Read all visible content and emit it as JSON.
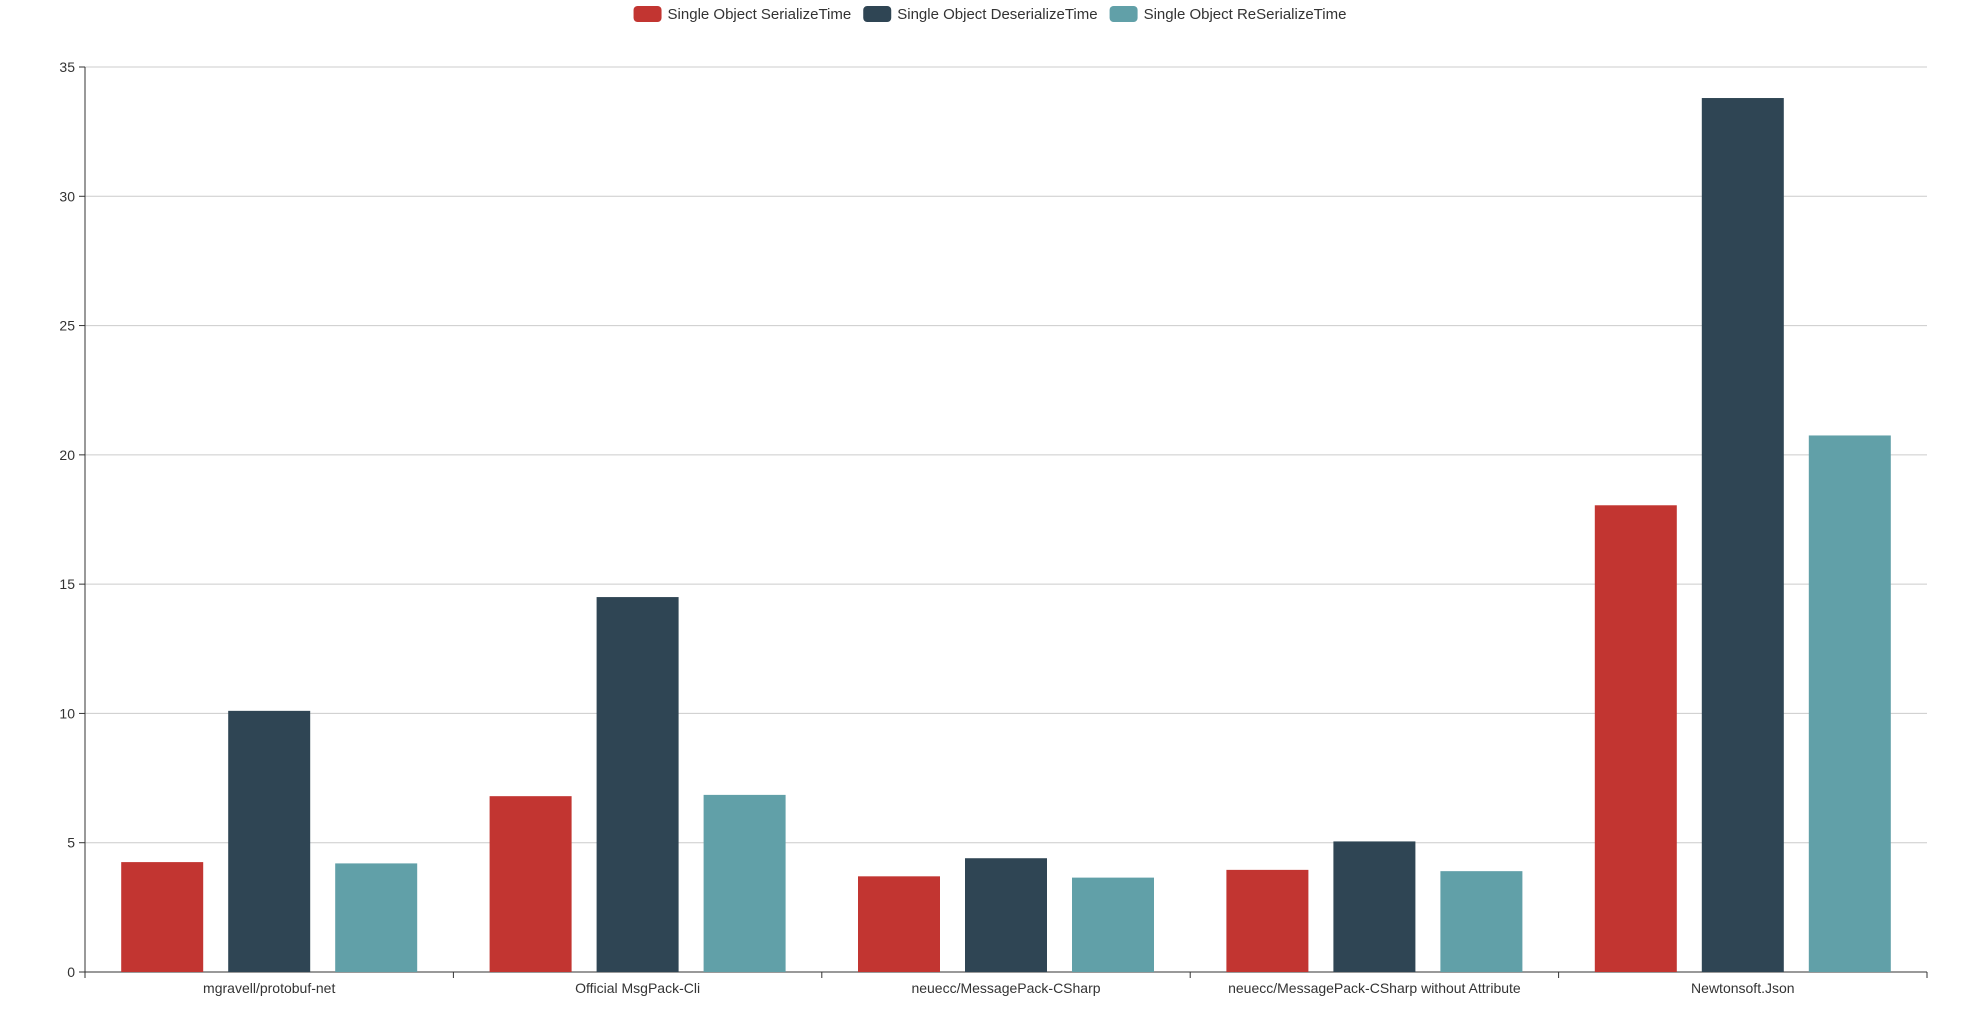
{
  "chart_data": {
    "type": "bar",
    "title": "",
    "xlabel": "",
    "ylabel": "",
    "categories": [
      "mgravell/protobuf-net",
      "Official MsgPack-Cli",
      "neuecc/MessagePack-CSharp",
      "neuecc/MessagePack-CSharp without Attribute",
      "Newtonsoft.Json"
    ],
    "series": [
      {
        "name": "Single Object SerializeTime",
        "color": "#c23531",
        "values": [
          4.25,
          6.8,
          3.7,
          3.95,
          18.05
        ]
      },
      {
        "name": "Single Object DeserializeTime",
        "color": "#2f4554",
        "values": [
          10.1,
          14.5,
          4.4,
          5.05,
          33.8
        ]
      },
      {
        "name": "Single Object ReSerializeTime",
        "color": "#61a0a8",
        "values": [
          4.2,
          6.85,
          3.65,
          3.9,
          20.75
        ]
      }
    ],
    "ylim": [
      0,
      35
    ],
    "yticks": [
      0,
      5,
      10,
      15,
      20,
      25,
      30,
      35
    ],
    "grid": true,
    "legend_position": "top-center"
  }
}
